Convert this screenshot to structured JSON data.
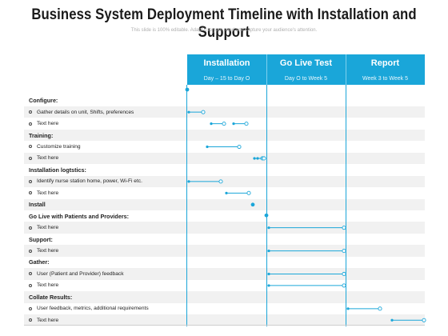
{
  "title": "Business System Deployment Timeline with Installation and Support",
  "subtitle": "This slide is 100% editable. Adapt it to your need and capture your audience's attention.",
  "columns": [
    {
      "label": "Installation",
      "range": "Day – 15 to Day O"
    },
    {
      "label": "Go Live Test",
      "range": "Day O to Week 5"
    },
    {
      "label": "Report",
      "range": "Week 3 to Week 5"
    }
  ],
  "rows": [
    {
      "text": "Configure:",
      "type": "head"
    },
    {
      "text": "Gather details on unit, Shifts, preferences",
      "type": "item"
    },
    {
      "text": "Text here",
      "type": "item"
    },
    {
      "text": "Training:",
      "type": "head"
    },
    {
      "text": "Customize training",
      "type": "item"
    },
    {
      "text": "Text here",
      "type": "item"
    },
    {
      "text": "Installation logtstics:",
      "type": "head"
    },
    {
      "text": "Identify nurse station home, power, Wi-Fi etc.",
      "type": "item"
    },
    {
      "text": "Text here",
      "type": "item"
    },
    {
      "text": "Install",
      "type": "head"
    },
    {
      "text": "Go Live with Patients and Providers:",
      "type": "head"
    },
    {
      "text": "Text here",
      "type": "item"
    },
    {
      "text": "Support:",
      "type": "head"
    },
    {
      "text": "Text here",
      "type": "item"
    },
    {
      "text": "Gather:",
      "type": "head"
    },
    {
      "text": "User (Patient and Provider) feedback",
      "type": "item"
    },
    {
      "text": "Text here",
      "type": "item"
    },
    {
      "text": "Collate Results:",
      "type": "head"
    },
    {
      "text": "User feedback, metrics, additional requirements",
      "type": "item"
    },
    {
      "text": "Text here",
      "type": "item"
    }
  ],
  "accent_color": "#1aa6d9"
}
